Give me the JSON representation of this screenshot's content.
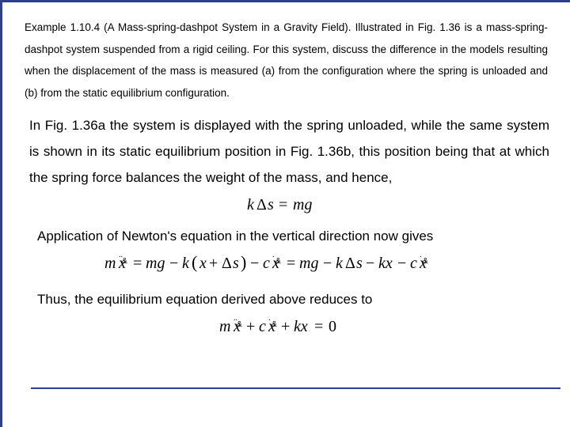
{
  "example": {
    "text": "Example 1.10.4 (A Mass-spring-dashpot System in a Gravity Field). Illustrated in Fig. 1.36 is a mass-spring-dashpot system suspended from a rigid ceiling. For this system, discuss the difference in the models resulting when the displacement of the mass is measured (a) from the configuration where the spring is unloaded and (b) from the static equilibrium configuration."
  },
  "body": {
    "p1": "In Fig. 1.36a the system is displayed with the spring unloaded, while the same system is shown in its static equilibrium position in Fig. 1.36b, this position being that at which the spring force balances the weight of the mass, and hence,",
    "p2": "Application of Newton's equation in the vertical direction now gives",
    "p3": "Thus, the equilibrium equation derived above reduces to"
  },
  "equations": {
    "eq1": {
      "font_family": "STIXGeneral, 'Times New Roman', serif",
      "font_size": 20,
      "color": "#000000"
    },
    "eq2": {
      "font_family": "STIXGeneral, 'Times New Roman', serif",
      "font_size": 20,
      "color": "#000000"
    },
    "eq3": {
      "font_family": "STIXGeneral, 'Times New Roman', serif",
      "font_size": 20,
      "color": "#000000"
    }
  },
  "style": {
    "border_color": "#2f3e8f",
    "background": "#ffffff",
    "example_fontsize": 13.5,
    "body_fontsize": 17
  }
}
